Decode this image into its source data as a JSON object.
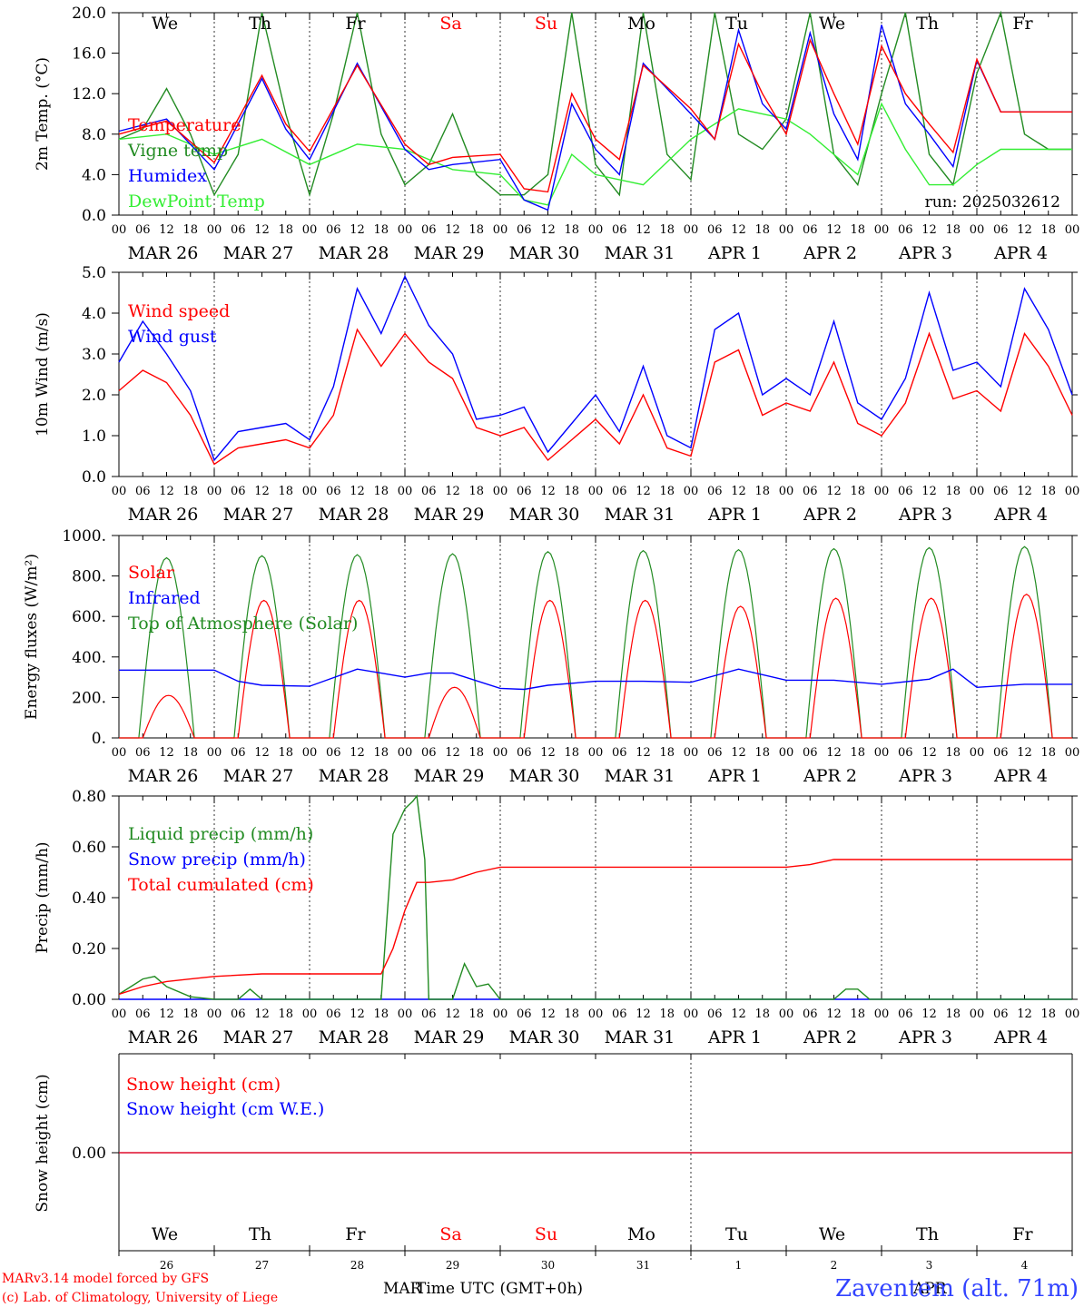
{
  "run_label": "run: 2025032612",
  "footer": {
    "model_line": "MARv3.14 model forced by GFS",
    "credit_line": "(c) Lab. of Climatology, University of Liege",
    "axis_title": "Time UTC (GMT+0h)",
    "mar_label": "MAR",
    "apr_label": "APR",
    "station": "Zaventem (alt. 71m)"
  },
  "time_axis": {
    "hour_ticks": [
      "00",
      "06",
      "12",
      "18"
    ],
    "day_labels": [
      "MAR 26",
      "MAR 27",
      "MAR 28",
      "MAR 29",
      "MAR 30",
      "MAR 31",
      "APR  1",
      "APR  2",
      "APR  3",
      "APR  4"
    ],
    "weekdays": [
      "We",
      "Th",
      "Fr",
      "Sa",
      "Su",
      "Mo",
      "Tu",
      "We",
      "Th",
      "Fr"
    ],
    "weekday_colors": [
      "#000000",
      "#000000",
      "#000000",
      "#ff0000",
      "#ff0000",
      "#000000",
      "#000000",
      "#000000",
      "#000000",
      "#000000"
    ],
    "day_numbers": [
      "26",
      "27",
      "28",
      "29",
      "30",
      "31",
      "1",
      "2",
      "3",
      "4"
    ],
    "x_range_hours": [
      0,
      240
    ]
  },
  "colors": {
    "red": "#ff0000",
    "green": "#228b22",
    "blue": "#0000ff",
    "lightgreen": "#33ee33"
  },
  "chart_data": [
    {
      "type": "line",
      "ylabel": "2m Temp. (°C)",
      "ylim": [
        0,
        20
      ],
      "yticks": [
        "0.0",
        "4.0",
        "8.0",
        "12.0",
        "16.0",
        "20.0"
      ],
      "legend_placement": "top-left",
      "series": [
        {
          "name": "Temperature",
          "color": "#ff0000",
          "x": [
            0,
            12,
            24,
            36,
            42,
            48,
            60,
            72,
            78,
            84,
            96,
            102,
            108,
            114,
            120,
            126,
            132,
            144,
            150,
            156,
            162,
            168,
            174,
            180,
            186,
            192,
            198,
            204,
            210,
            216,
            222,
            228,
            234,
            240
          ],
          "y": [
            8.0,
            9.3,
            5.2,
            13.8,
            9.0,
            6.3,
            14.8,
            7.0,
            5.0,
            5.7,
            6.0,
            2.6,
            2.3,
            12.0,
            7.5,
            5.5,
            14.8,
            10.5,
            7.5,
            16.9,
            12.0,
            8.0,
            17.3,
            12.0,
            7.0,
            16.7,
            12.0,
            9.0,
            6.2,
            15.4,
            10.2,
            10.2,
            10.2,
            10.2
          ]
        },
        {
          "name": "Vigne temp",
          "color": "#228b22",
          "x": [
            0,
            6,
            12,
            18,
            24,
            30,
            36,
            42,
            48,
            54,
            60,
            66,
            72,
            78,
            84,
            90,
            96,
            102,
            108,
            114,
            120,
            126,
            132,
            138,
            144,
            150,
            156,
            162,
            168,
            174,
            180,
            186,
            192,
            198,
            204,
            210,
            216,
            222,
            228,
            234,
            240
          ],
          "y": [
            7.5,
            8.5,
            12.5,
            8.0,
            2.0,
            6.0,
            20.0,
            10.0,
            2.0,
            10.0,
            20.0,
            8.0,
            3.0,
            5.0,
            10.0,
            4.0,
            2.0,
            2.0,
            4.0,
            20.0,
            5.0,
            2.0,
            20.0,
            6.0,
            3.5,
            20.0,
            8.0,
            6.5,
            9.5,
            20.0,
            6.0,
            3.0,
            12.0,
            20.0,
            6.0,
            3.0,
            14.0,
            20.0,
            8.0,
            6.5,
            6.5
          ]
        },
        {
          "name": "Humidex",
          "color": "#0000ff",
          "x": [
            0,
            12,
            24,
            36,
            42,
            48,
            60,
            72,
            78,
            84,
            96,
            102,
            108,
            114,
            120,
            126,
            132,
            144,
            150,
            156,
            162,
            168,
            174,
            180,
            186,
            192,
            198,
            204,
            210,
            216,
            222,
            228,
            234,
            240
          ],
          "y": [
            8.3,
            9.5,
            4.5,
            13.5,
            8.5,
            5.5,
            15.0,
            6.5,
            4.5,
            5.0,
            5.5,
            1.5,
            0.5,
            11.0,
            6.5,
            4.0,
            15.0,
            10.0,
            7.5,
            18.3,
            11.0,
            8.5,
            18.0,
            10.0,
            5.5,
            18.8,
            11.0,
            8.0,
            4.8,
            15.3,
            10.2,
            10.2,
            10.2,
            10.2
          ]
        },
        {
          "name": "DewPoint Temp",
          "color": "#33ee33",
          "x": [
            0,
            12,
            24,
            36,
            48,
            60,
            72,
            84,
            96,
            102,
            108,
            114,
            120,
            132,
            144,
            156,
            168,
            174,
            180,
            186,
            192,
            198,
            204,
            210,
            216,
            222,
            228,
            234,
            240
          ],
          "y": [
            7.5,
            8.0,
            6.0,
            7.5,
            5.0,
            7.0,
            6.5,
            4.5,
            4.0,
            1.5,
            1.0,
            6.0,
            4.0,
            3.0,
            7.5,
            10.5,
            9.5,
            8.0,
            6.0,
            4.0,
            11.0,
            6.5,
            3.0,
            3.0,
            5.0,
            6.5,
            6.5,
            6.5,
            6.5
          ]
        }
      ]
    },
    {
      "type": "line",
      "ylabel": "10m Wind (m/s)",
      "ylim": [
        0,
        5
      ],
      "yticks": [
        "0.0",
        "1.0",
        "2.0",
        "3.0",
        "4.0",
        "5.0"
      ],
      "legend_placement": "top-left",
      "series": [
        {
          "name": "Wind speed",
          "color": "#ff0000",
          "x": [
            0,
            6,
            12,
            18,
            24,
            30,
            36,
            42,
            48,
            54,
            60,
            66,
            72,
            78,
            84,
            90,
            96,
            102,
            108,
            114,
            120,
            126,
            132,
            138,
            144,
            150,
            156,
            162,
            168,
            174,
            180,
            186,
            192,
            198,
            204,
            210,
            216,
            222,
            228,
            234,
            240
          ],
          "y": [
            2.1,
            2.6,
            2.3,
            1.5,
            0.3,
            0.7,
            0.8,
            0.9,
            0.7,
            1.5,
            3.6,
            2.7,
            3.5,
            2.8,
            2.4,
            1.2,
            1.0,
            1.2,
            0.4,
            0.9,
            1.4,
            0.8,
            2.0,
            0.7,
            0.5,
            2.8,
            3.1,
            1.5,
            1.8,
            1.6,
            2.8,
            1.3,
            1.0,
            1.8,
            3.5,
            1.9,
            2.1,
            1.6,
            3.5,
            2.7,
            1.5
          ]
        },
        {
          "name": "Wind gust",
          "color": "#0000ff",
          "x": [
            0,
            6,
            12,
            18,
            24,
            30,
            36,
            42,
            48,
            54,
            60,
            66,
            72,
            78,
            84,
            90,
            96,
            102,
            108,
            114,
            120,
            126,
            132,
            138,
            144,
            150,
            156,
            162,
            168,
            174,
            180,
            186,
            192,
            198,
            204,
            210,
            216,
            222,
            228,
            234,
            240
          ],
          "y": [
            2.8,
            3.8,
            3.0,
            2.1,
            0.4,
            1.1,
            1.2,
            1.3,
            0.9,
            2.2,
            4.6,
            3.5,
            4.9,
            3.7,
            3.0,
            1.4,
            1.5,
            1.7,
            0.6,
            1.3,
            2.0,
            1.1,
            2.7,
            1.0,
            0.7,
            3.6,
            4.0,
            2.0,
            2.4,
            2.0,
            3.8,
            1.8,
            1.4,
            2.4,
            4.5,
            2.6,
            2.8,
            2.2,
            4.6,
            3.6,
            2.0
          ]
        }
      ]
    },
    {
      "type": "line",
      "ylabel": "Energy fluxes (W/m²)",
      "ylim": [
        0,
        1000
      ],
      "yticks": [
        "0.",
        "200.",
        "400.",
        "600.",
        "800.",
        "1000."
      ],
      "legend_placement": "top-left",
      "series": [
        {
          "name": "Solar",
          "color": "#ff0000",
          "daily_peaks": [
            210,
            680,
            680,
            250,
            680,
            680,
            650,
            690,
            690,
            710
          ],
          "day_start_hour": 6,
          "day_end_hour": 19
        },
        {
          "name": "Infrared",
          "color": "#0000ff",
          "x": [
            0,
            24,
            30,
            36,
            48,
            60,
            66,
            72,
            78,
            84,
            96,
            102,
            108,
            120,
            132,
            144,
            156,
            168,
            180,
            192,
            204,
            210,
            216,
            228,
            234,
            240
          ],
          "y": [
            335,
            335,
            280,
            260,
            255,
            340,
            320,
            300,
            320,
            320,
            245,
            240,
            260,
            280,
            280,
            275,
            340,
            285,
            285,
            265,
            290,
            340,
            250,
            265,
            265,
            265
          ]
        },
        {
          "name": "Top of Atmosphere (Solar)",
          "color": "#228b22",
          "daily_peaks": [
            890,
            900,
            905,
            910,
            920,
            925,
            930,
            935,
            940,
            945
          ],
          "day_start_hour": 5,
          "day_end_hour": 19
        }
      ]
    },
    {
      "type": "line",
      "ylabel": "Precip (mm/h)",
      "ylim": [
        0,
        0.8
      ],
      "yticks": [
        "0.00",
        "0.20",
        "0.40",
        "0.60",
        "0.80"
      ],
      "legend_placement": "top-left",
      "series": [
        {
          "name": "Liquid precip (mm/h)",
          "color": "#228b22",
          "x": [
            0,
            6,
            9,
            12,
            18,
            24,
            30,
            33,
            36,
            66,
            69,
            72,
            74,
            75,
            77,
            78,
            84,
            87,
            90,
            93,
            96,
            102,
            180,
            183,
            186,
            189,
            192,
            240
          ],
          "y": [
            0.02,
            0.08,
            0.09,
            0.05,
            0.01,
            0.0,
            0.0,
            0.04,
            0.0,
            0.0,
            0.65,
            0.75,
            0.78,
            0.8,
            0.55,
            0.0,
            0.0,
            0.14,
            0.05,
            0.06,
            0.0,
            0.0,
            0.0,
            0.04,
            0.04,
            0.0,
            0.0,
            0.0
          ]
        },
        {
          "name": "Snow precip (mm/h)",
          "color": "#0000ff",
          "x": [
            0,
            240
          ],
          "y": [
            0,
            0
          ]
        },
        {
          "name": "Total cumulated (cm)",
          "color": "#ff0000",
          "x": [
            0,
            6,
            12,
            18,
            24,
            36,
            48,
            60,
            66,
            69,
            72,
            75,
            78,
            84,
            90,
            96,
            168,
            174,
            180,
            186,
            192,
            240
          ],
          "y": [
            0.02,
            0.05,
            0.07,
            0.08,
            0.09,
            0.1,
            0.1,
            0.1,
            0.1,
            0.2,
            0.35,
            0.46,
            0.46,
            0.47,
            0.5,
            0.52,
            0.52,
            0.53,
            0.55,
            0.55,
            0.55,
            0.55
          ]
        }
      ]
    },
    {
      "type": "line",
      "ylabel": "Snow height (cm)",
      "ytick": "0.00",
      "legend_placement": "top-left",
      "series": [
        {
          "name": "Snow height (cm)",
          "color": "#ff0000",
          "x": [
            0,
            240
          ],
          "y": [
            0,
            0
          ]
        },
        {
          "name": "Snow height (cm W.E.)",
          "color": "#0000ff",
          "x": [
            0,
            240
          ],
          "y": [
            0,
            0
          ]
        }
      ]
    }
  ]
}
